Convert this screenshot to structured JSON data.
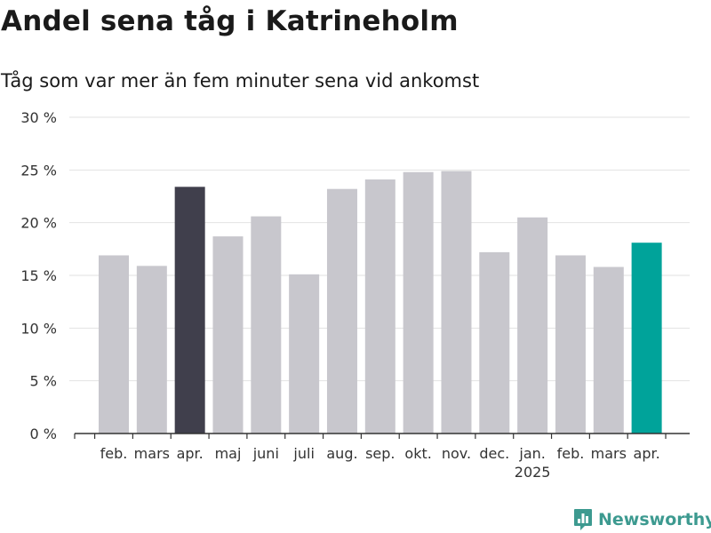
{
  "header": {
    "title": "Andel sena tåg i Katrineholm",
    "subtitle": "Tåg som var mer än fem minuter sena vid ankomst"
  },
  "brand": {
    "name": "Newsworthy",
    "color": "#3d9a90",
    "icon": "newsworthy-logo-icon"
  },
  "chart_data": {
    "type": "bar",
    "categories": [
      "feb.",
      "mars",
      "apr.",
      "maj",
      "juni",
      "juli",
      "aug.",
      "sep.",
      "okt.",
      "nov.",
      "dec.",
      "jan.",
      "feb.",
      "mars",
      "apr."
    ],
    "category_sublabels": [
      "",
      "",
      "",
      "",
      "",
      "",
      "",
      "",
      "",
      "",
      "",
      "2025",
      "",
      "",
      ""
    ],
    "values": [
      16.9,
      15.9,
      23.4,
      18.7,
      20.6,
      15.1,
      23.2,
      24.1,
      24.8,
      24.9,
      17.2,
      20.5,
      16.9,
      15.8,
      18.1
    ],
    "ylim": [
      0,
      30
    ],
    "yticks": [
      0,
      5,
      10,
      15,
      20,
      25,
      30
    ],
    "ytick_labels": [
      "0 %",
      "5 %",
      "10 %",
      "15 %",
      "20 %",
      "25 %",
      "30 %"
    ],
    "grid": true,
    "colors": {
      "default": "#c8c7cd",
      "highlight_dark": "#403f4c",
      "highlight_current": "#00a39a",
      "grid": "#e2e2e2",
      "axis": "#333333"
    },
    "bar_colors": [
      "default",
      "default",
      "highlight_dark",
      "default",
      "default",
      "default",
      "default",
      "default",
      "default",
      "default",
      "default",
      "default",
      "default",
      "default",
      "highlight_current"
    ]
  }
}
